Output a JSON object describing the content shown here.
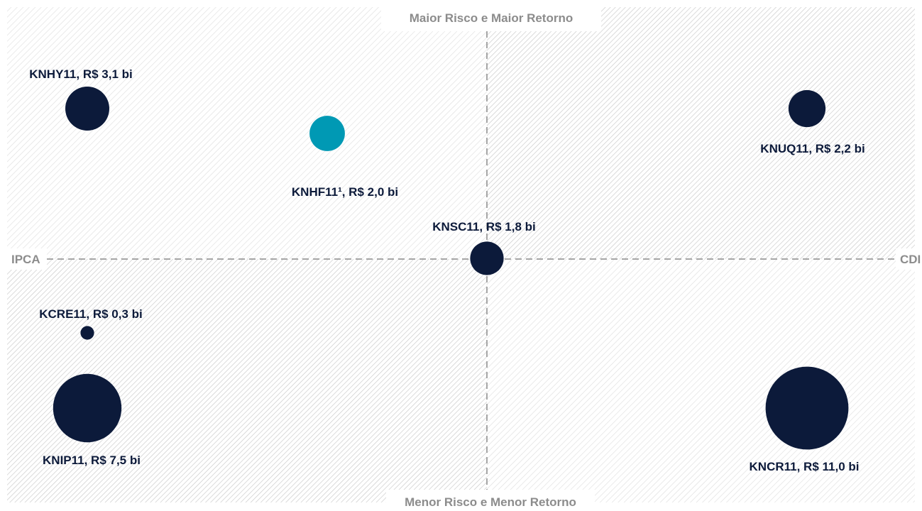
{
  "chart_data": {
    "type": "scatter",
    "title": "",
    "quadrant_labels": {
      "top": "Maior Risco e Maior Retorno",
      "bottom": "Menor Risco e Menor Retorno",
      "left": "IPCA",
      "right": "CDI"
    },
    "x_axis": {
      "from": "IPCA",
      "to": "CDI"
    },
    "y_axis": {
      "from": "Menor Risco e Menor Retorno",
      "to": "Maior Risco e Maior Retorno"
    },
    "size_unit": "R$ bi",
    "points": [
      {
        "label": "KNHY11, R$ 3,1 bi",
        "fund": "KNHY11",
        "aum_bi": 3.1,
        "color": "#0c1a3a"
      },
      {
        "label": "KNHF11¹, R$ 2,0 bi",
        "fund": "KNHF11",
        "aum_bi": 2.0,
        "color": "#0099b4"
      },
      {
        "label": "KNUQ11, R$ 2,2 bi",
        "fund": "KNUQ11",
        "aum_bi": 2.2,
        "color": "#0c1a3a"
      },
      {
        "label": "KNSC11, R$ 1,8 bi",
        "fund": "KNSC11",
        "aum_bi": 1.8,
        "color": "#0c1a3a"
      },
      {
        "label": "KCRE11, R$ 0,3 bi",
        "fund": "KCRE11",
        "aum_bi": 0.3,
        "color": "#0c1a3a"
      },
      {
        "label": "KNIP11, R$ 7,5 bi",
        "fund": "KNIP11",
        "aum_bi": 7.5,
        "color": "#0c1a3a"
      },
      {
        "label": "KNCR11, R$ 11,0 bi",
        "fund": "KNCR11",
        "aum_bi": 11.0,
        "color": "#0c1a3a"
      }
    ]
  },
  "colors": {
    "axis_dash": "#a6a6a6",
    "hatch": "#d4d4d4",
    "label_box": "#ffffff"
  }
}
